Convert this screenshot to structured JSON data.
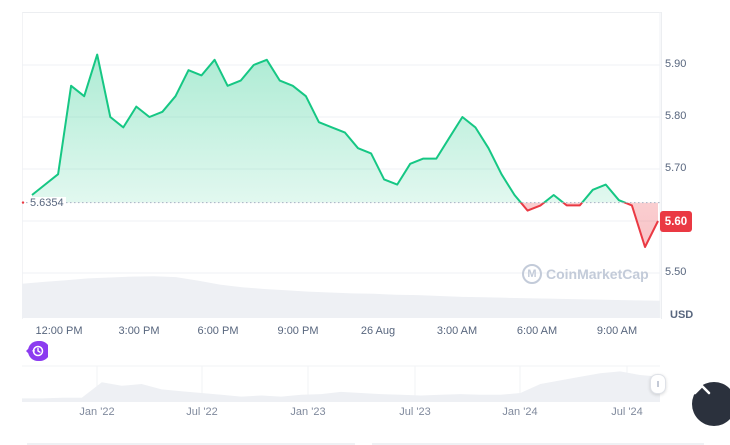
{
  "chart_data": {
    "type": "line",
    "title": "",
    "xlabel": "",
    "ylabel": "USD",
    "currency": "USD",
    "baseline_value": 5.6354,
    "current_price": 5.6,
    "ylim": [
      5.44,
      5.99
    ],
    "y_ticks": [
      "5.90",
      "5.80",
      "5.70",
      "5.60",
      "5.50"
    ],
    "x_ticks": [
      "12:00 PM",
      "3:00 PM",
      "6:00 PM",
      "9:00 PM",
      "26 Aug",
      "3:00 AM",
      "6:00 AM",
      "9:00 AM"
    ],
    "grid": true,
    "colors": {
      "up": "#16c784",
      "down": "#ea3943"
    },
    "series": [
      {
        "name": "Price (USD)",
        "x": [
          "10:00 AM",
          "10:30 AM",
          "11:00 AM",
          "11:30 AM",
          "12:00 PM",
          "12:30 PM",
          "1:00 PM",
          "1:30 PM",
          "2:00 PM",
          "2:30 PM",
          "3:00 PM",
          "3:30 PM",
          "4:00 PM",
          "4:30 PM",
          "5:00 PM",
          "5:30 PM",
          "6:00 PM",
          "6:30 PM",
          "7:00 PM",
          "7:30 PM",
          "8:00 PM",
          "8:30 PM",
          "9:00 PM",
          "9:30 PM",
          "10:00 PM",
          "10:30 PM",
          "11:00 PM",
          "11:30 PM",
          "12:00 AM",
          "12:30 AM",
          "1:00 AM",
          "1:30 AM",
          "2:00 AM",
          "2:30 AM",
          "3:00 AM",
          "3:30 AM",
          "4:00 AM",
          "4:30 AM",
          "5:00 AM",
          "5:30 AM",
          "6:00 AM",
          "6:30 AM",
          "7:00 AM",
          "7:30 AM",
          "8:00 AM",
          "8:30 AM",
          "9:00 AM",
          "9:30 AM",
          "10:00 AM"
        ],
        "values": [
          5.65,
          5.67,
          5.69,
          5.86,
          5.84,
          5.92,
          5.8,
          5.78,
          5.82,
          5.8,
          5.81,
          5.84,
          5.89,
          5.88,
          5.91,
          5.86,
          5.87,
          5.9,
          5.91,
          5.87,
          5.86,
          5.84,
          5.79,
          5.78,
          5.77,
          5.74,
          5.73,
          5.68,
          5.67,
          5.71,
          5.72,
          5.72,
          5.76,
          5.8,
          5.78,
          5.74,
          5.69,
          5.65,
          5.62,
          5.63,
          5.65,
          5.63,
          5.63,
          5.66,
          5.67,
          5.64,
          5.63,
          5.55,
          5.6
        ]
      }
    ],
    "volume_series": {
      "name": "Volume",
      "relative_values": [
        0.78,
        0.82,
        0.86,
        0.9,
        0.92,
        0.94,
        0.95,
        0.93,
        0.85,
        0.76,
        0.7,
        0.66,
        0.63,
        0.6,
        0.58,
        0.56,
        0.55,
        0.53,
        0.52,
        0.5,
        0.48,
        0.47,
        0.46,
        0.45,
        0.44,
        0.43,
        0.42,
        0.41,
        0.4,
        0.39
      ]
    },
    "navigator": {
      "x_ticks": [
        "Jan '22",
        "Jul '22",
        "Jan '23",
        "Jul '23",
        "Jan '24",
        "Jul '24"
      ]
    }
  },
  "labels": {
    "baseline": "5.6354",
    "price_badge": "5.60",
    "currency": "USD",
    "watermark": "CoinMarketCap",
    "watermark_icon": "M"
  },
  "icons": {
    "history": "history-icon",
    "scroll_top": "chevron-up-icon",
    "nav_handle": "drag-handle-icon"
  }
}
